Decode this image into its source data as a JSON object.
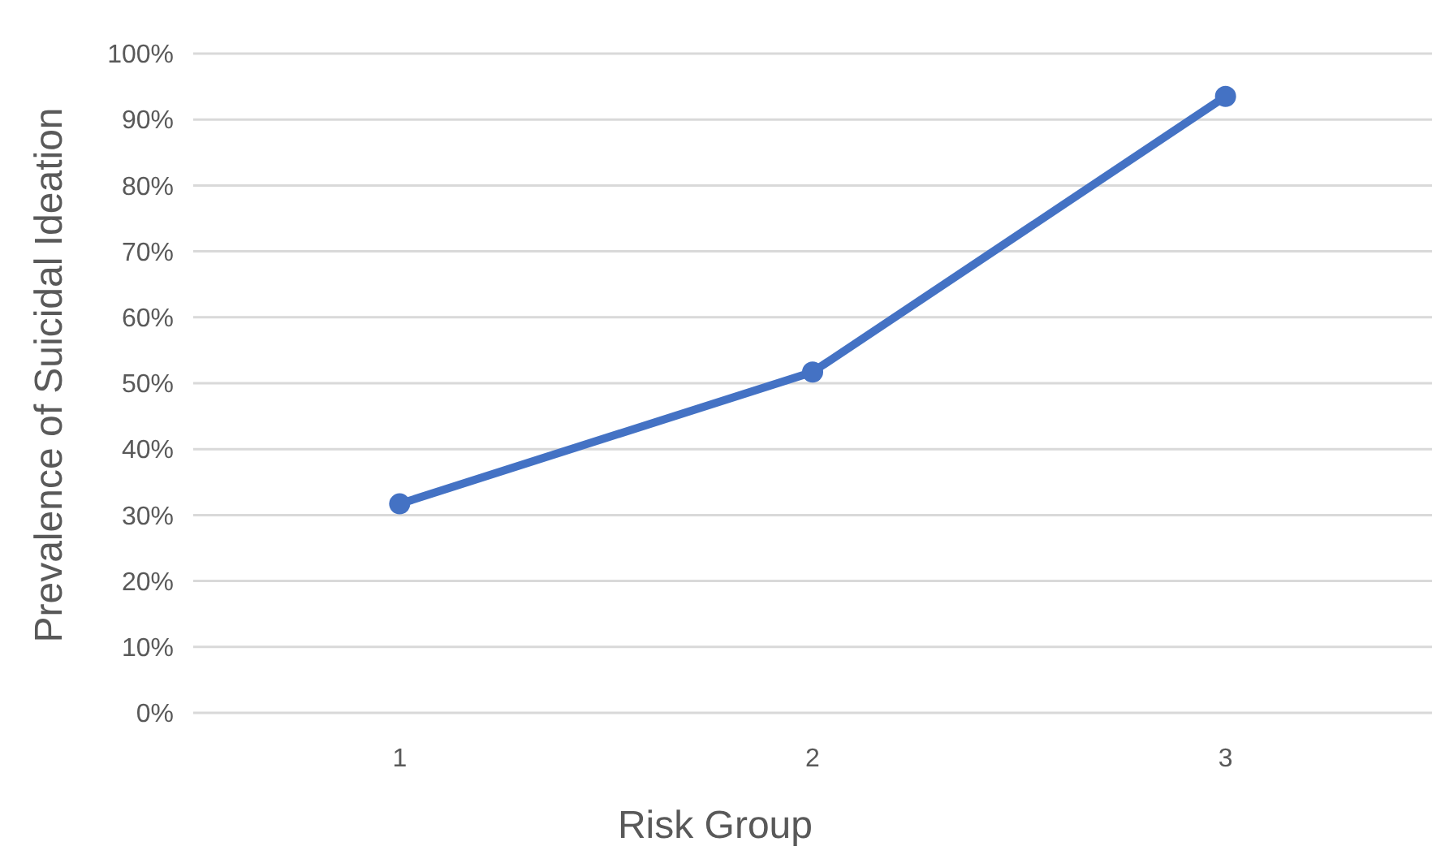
{
  "chart_data": {
    "type": "line",
    "xlabel": "Risk Group",
    "ylabel": "Prevalence of Suicidal Ideation",
    "categories": [
      "1",
      "2",
      "3"
    ],
    "series": [
      {
        "color": "#4472c4",
        "values": [
          31.7,
          51.7,
          93.5
        ]
      }
    ],
    "ylim": [
      0,
      100
    ],
    "yticks": [
      {
        "value": 0,
        "label": "0%"
      },
      {
        "value": 10,
        "label": "10%"
      },
      {
        "value": 20,
        "label": "20%"
      },
      {
        "value": 30,
        "label": "30%"
      },
      {
        "value": 40,
        "label": "40%"
      },
      {
        "value": 50,
        "label": "50%"
      },
      {
        "value": 60,
        "label": "60%"
      },
      {
        "value": 70,
        "label": "70%"
      },
      {
        "value": 80,
        "label": "80%"
      },
      {
        "value": 90,
        "label": "90%"
      },
      {
        "value": 100,
        "label": "100%"
      }
    ],
    "grid": "y",
    "marker": "circle",
    "line_style": "solid"
  }
}
